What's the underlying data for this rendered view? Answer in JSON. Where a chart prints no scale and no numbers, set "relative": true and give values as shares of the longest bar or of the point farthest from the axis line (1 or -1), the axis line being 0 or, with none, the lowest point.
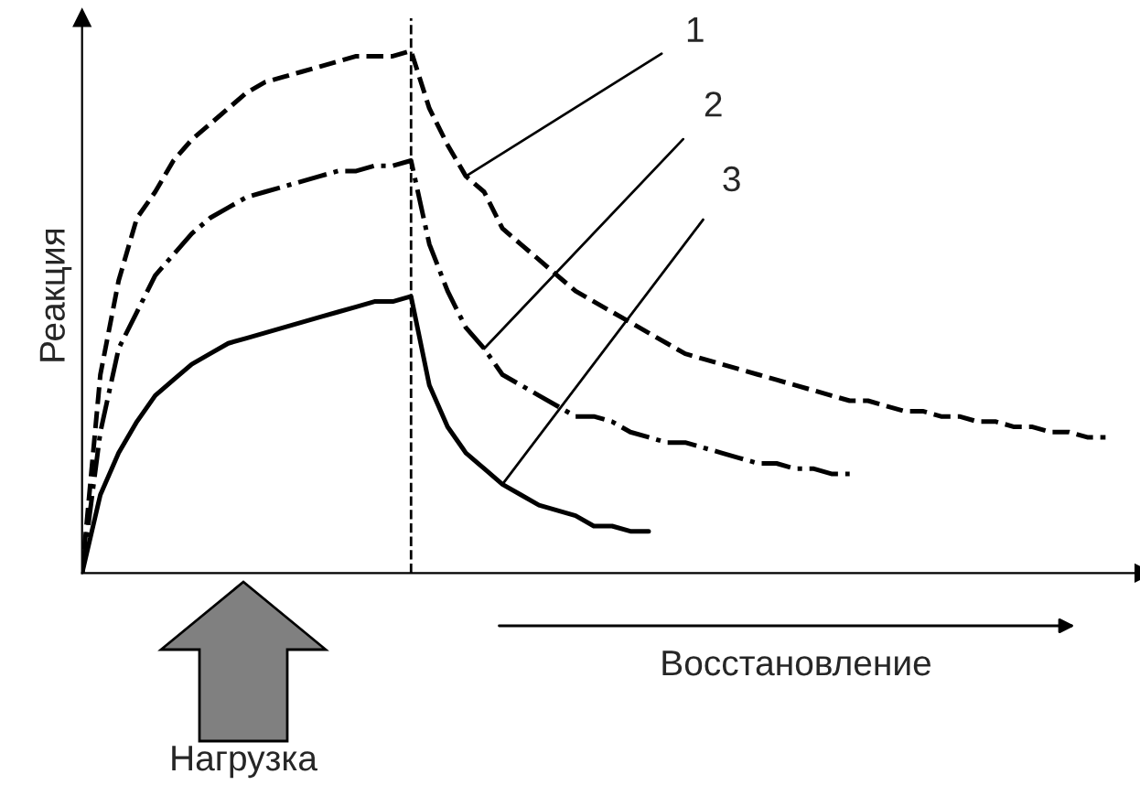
{
  "chart_data": {
    "type": "line",
    "relative": true,
    "ylabel": "Реакция",
    "categories": [
      null,
      null,
      null,
      null,
      null,
      null,
      null,
      null,
      null,
      null,
      null,
      null,
      null,
      null,
      null,
      null,
      null,
      null,
      null,
      null,
      null,
      null,
      null,
      null,
      null,
      null,
      null,
      null,
      null,
      null,
      null,
      null,
      null,
      null,
      null,
      null,
      null,
      null,
      null,
      null,
      null,
      null,
      null,
      null,
      null,
      null,
      null,
      null,
      null,
      null,
      null,
      null,
      null,
      null,
      null,
      null,
      null
    ],
    "series": [
      {
        "color": "#000000",
        "line_style": "dashed",
        "values": [
          0,
          0.38,
          0.56,
          0.68,
          0.73,
          0.79,
          0.83,
          0.86,
          0.89,
          0.92,
          0.94,
          0.95,
          0.96,
          0.97,
          0.98,
          0.99,
          0.99,
          0.99,
          1.0,
          0.89,
          0.82,
          0.76,
          0.73,
          0.66,
          0.63,
          0.6,
          0.57,
          0.54,
          0.52,
          0.5,
          0.48,
          0.46,
          0.44,
          0.42,
          0.41,
          0.4,
          0.39,
          0.38,
          0.37,
          0.36,
          0.35,
          0.34,
          0.33,
          0.33,
          0.32,
          0.31,
          0.31,
          0.3,
          0.3,
          0.29,
          0.29,
          0.28,
          0.28,
          0.27,
          0.27,
          0.26,
          0.26
        ]
      },
      {
        "color": "#000000",
        "line_style": "dashdot",
        "values": [
          0,
          0.27,
          0.43,
          0.5,
          0.57,
          0.61,
          0.65,
          0.68,
          0.7,
          0.72,
          0.73,
          0.74,
          0.75,
          0.76,
          0.77,
          0.77,
          0.78,
          0.78,
          0.79,
          0.63,
          0.54,
          0.47,
          0.43,
          0.38,
          0.36,
          0.34,
          0.32,
          0.3,
          0.3,
          0.29,
          0.27,
          0.26,
          0.25,
          0.25,
          0.24,
          0.23,
          0.22,
          0.21,
          0.21,
          0.2,
          0.2,
          0.19,
          0.19,
          null,
          null,
          null,
          null,
          null,
          null,
          null,
          null,
          null,
          null,
          null,
          null,
          null,
          null
        ]
      },
      {
        "color": "#000000",
        "line_style": "solid",
        "values": [
          0,
          0.15,
          0.23,
          0.29,
          0.34,
          0.37,
          0.4,
          0.42,
          0.44,
          0.45,
          0.46,
          0.47,
          0.48,
          0.49,
          0.5,
          0.51,
          0.52,
          0.52,
          0.53,
          0.36,
          0.28,
          0.23,
          0.2,
          0.17,
          0.15,
          0.13,
          0.12,
          0.11,
          0.09,
          0.09,
          0.08,
          0.08,
          null,
          null,
          null,
          null,
          null,
          null,
          null,
          null,
          null,
          null,
          null,
          null,
          null,
          null,
          null,
          null,
          null,
          null,
          null,
          null,
          null,
          null,
          null,
          null,
          null
        ]
      }
    ],
    "annotations": [
      "1",
      "2",
      "3",
      "Восстановление",
      "Нагрузка"
    ]
  }
}
